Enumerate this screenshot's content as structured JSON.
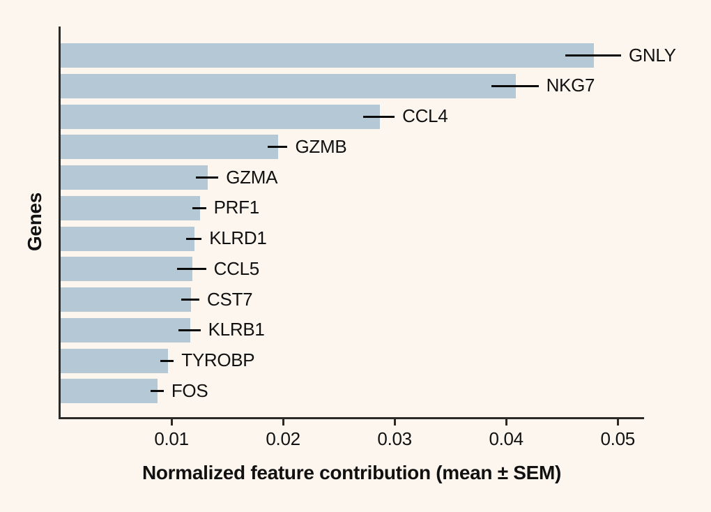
{
  "chart_data": {
    "type": "bar",
    "orientation": "horizontal",
    "title": "",
    "xlabel": "Normalized feature contribution (mean ± SEM)",
    "ylabel": "Genes",
    "categories": [
      "GNLY",
      "NKG7",
      "CCL4",
      "GZMB",
      "GZMA",
      "PRF1",
      "KLRD1",
      "CCL5",
      "CST7",
      "KLRB1",
      "TYROBP",
      "FOS"
    ],
    "values": [
      0.0478,
      0.0408,
      0.0286,
      0.0195,
      0.0132,
      0.0125,
      0.012,
      0.0118,
      0.0117,
      0.0116,
      0.0096,
      0.0087
    ],
    "sem": [
      0.0025,
      0.0021,
      0.0014,
      0.0009,
      0.001,
      0.0006,
      0.0007,
      0.0013,
      0.0008,
      0.001,
      0.0006,
      0.0006
    ],
    "error_bar_style": "horizontal line, no caps",
    "xlim": [
      0,
      0.0523
    ],
    "xticks": [
      0.01,
      0.02,
      0.03,
      0.04,
      0.05
    ],
    "xtick_labels": [
      "0.01",
      "0.02",
      "0.03",
      "0.04",
      "0.05"
    ],
    "grid": false,
    "legend": null
  },
  "colors": {
    "background": "#FCF6EE",
    "bar_fill": "#B5C8D5",
    "error_bar": "#0A0A0A",
    "axis": "#2B2A27",
    "text": "#111111"
  }
}
